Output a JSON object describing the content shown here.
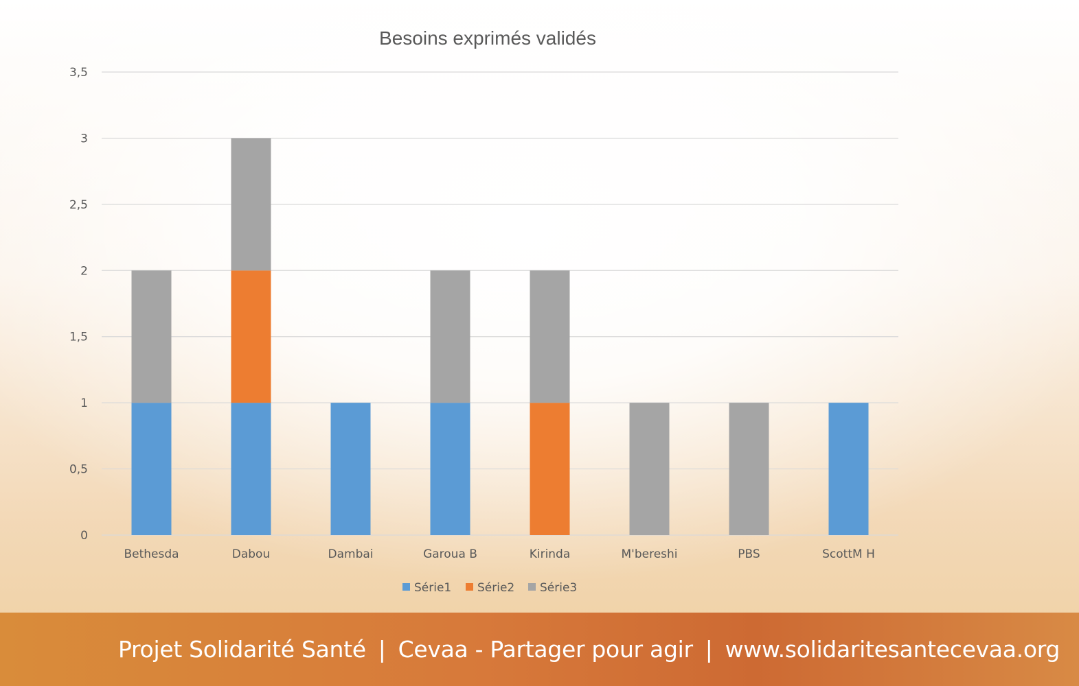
{
  "chart_data": {
    "type": "bar",
    "stacked": true,
    "title": "Besoins exprimés validés",
    "categories": [
      "Bethesda",
      "Dabou",
      "Dambai",
      "Garoua B",
      "Kirinda",
      "M'bereshi",
      "PBS",
      "ScottM H"
    ],
    "series": [
      {
        "name": "Série1",
        "color": "#5B9BD5",
        "values": [
          1,
          1,
          1,
          1,
          0,
          0,
          0,
          1
        ]
      },
      {
        "name": "Série2",
        "color": "#ED7D31",
        "values": [
          0,
          1,
          0,
          0,
          1,
          0,
          0,
          0
        ]
      },
      {
        "name": "Série3",
        "color": "#A5A5A5",
        "values": [
          1,
          1,
          0,
          1,
          1,
          1,
          1,
          0
        ]
      }
    ],
    "ylim": [
      0,
      3.5
    ],
    "yticks": [
      "0",
      "0,5",
      "1",
      "1,5",
      "2",
      "2,5",
      "3",
      "3,5"
    ],
    "grid": true,
    "legend": "bottom"
  },
  "footer": {
    "part1": "Projet Solidarité Santé",
    "part2": "Cevaa - Partager pour agir",
    "part3": "www.solidaritesantecevaa.org",
    "separator": "|"
  }
}
